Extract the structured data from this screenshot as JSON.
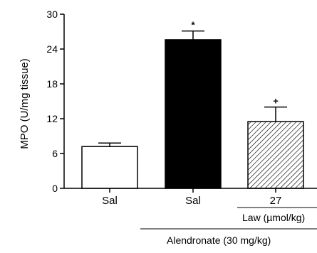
{
  "chart_data": {
    "type": "bar",
    "title": "",
    "xlabel": "",
    "ylabel": "MPO (U/mg tissue)",
    "ylim": [
      0,
      30
    ],
    "yticks": [
      0,
      6,
      12,
      18,
      24,
      30
    ],
    "grid": false,
    "categories": [
      "Sal",
      "Sal",
      "27"
    ],
    "values": [
      7.2,
      25.6,
      11.5
    ],
    "errors": [
      0.6,
      1.5,
      2.5
    ],
    "bar_fills": [
      "white",
      "black",
      "hatched"
    ],
    "significance": [
      "",
      "*",
      "+"
    ],
    "group_labels": {
      "law": "Law (µmol/kg)",
      "alendronate": "Alendronate (30 mg/kg)"
    }
  }
}
